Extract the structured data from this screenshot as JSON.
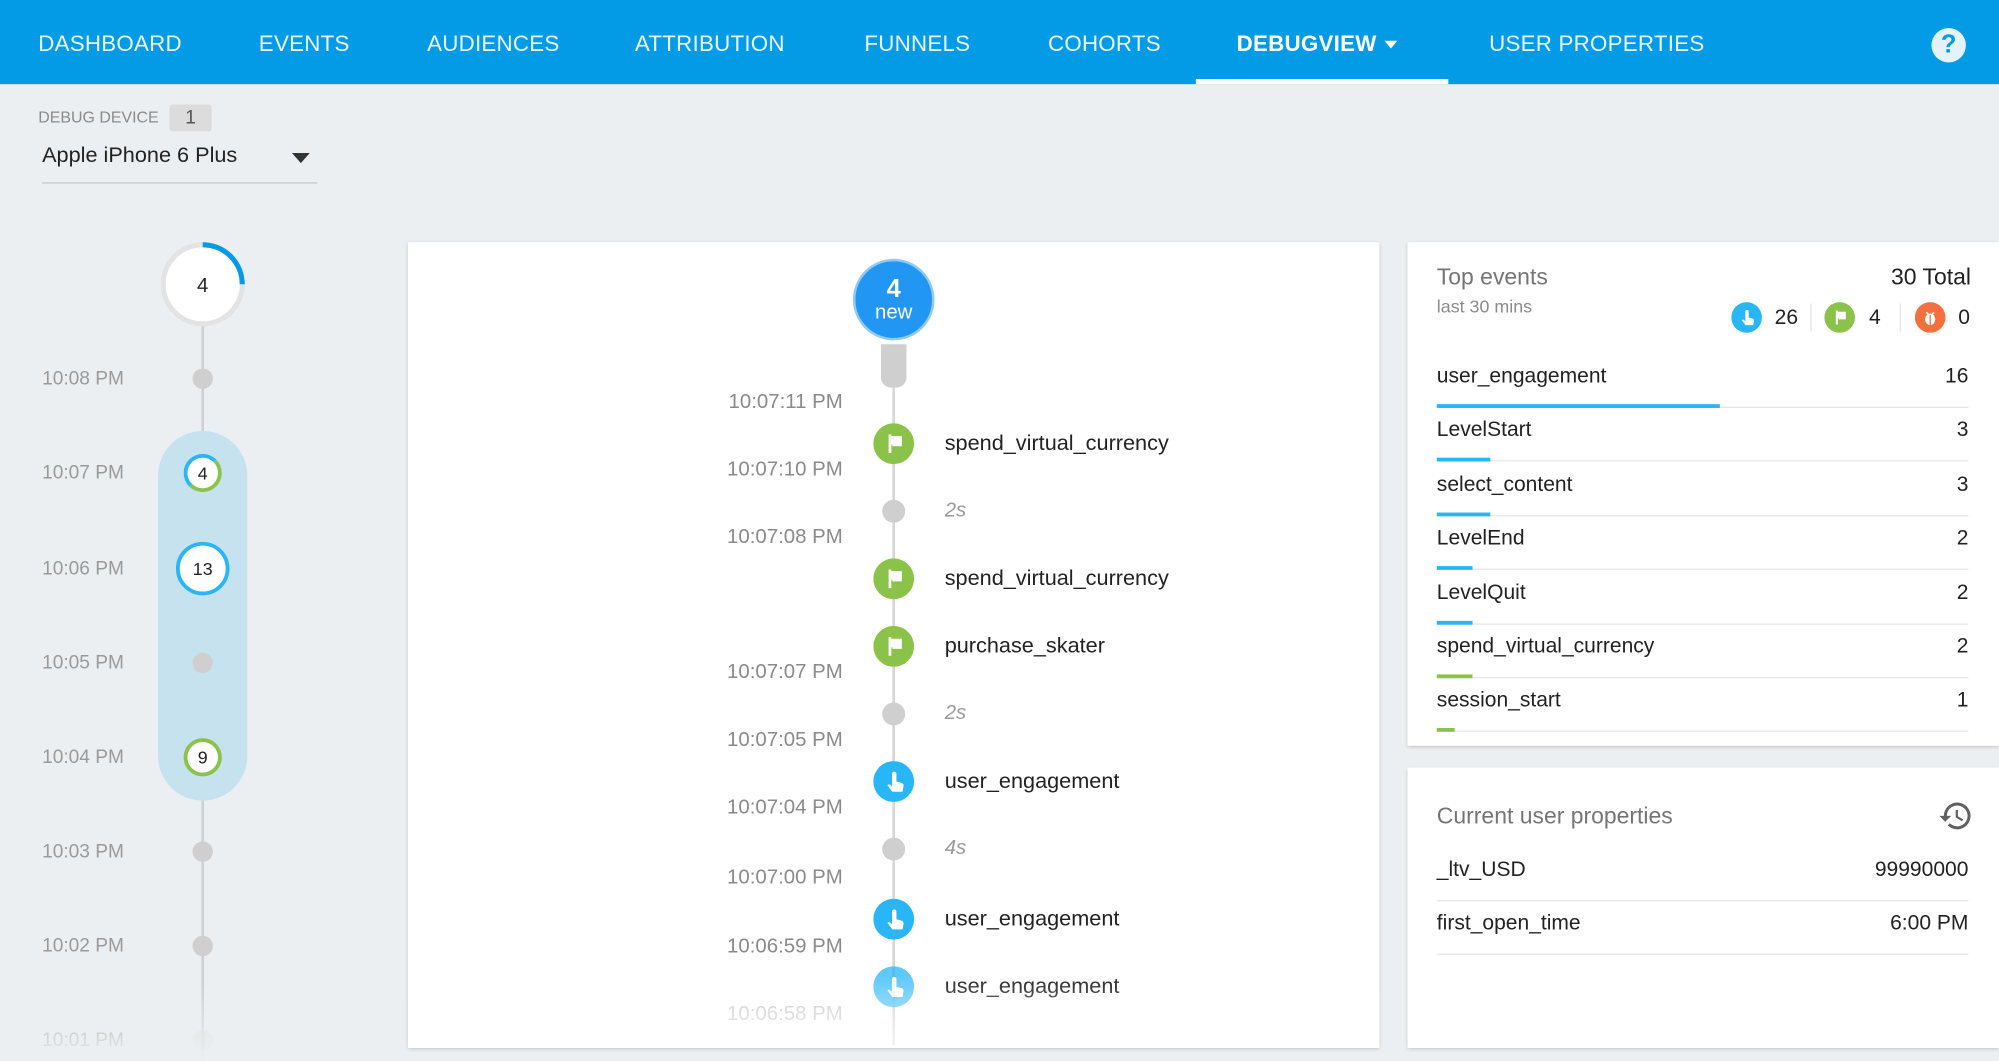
{
  "nav": {
    "tabs": [
      "DASHBOARD",
      "EVENTS",
      "AUDIENCES",
      "ATTRIBUTION",
      "FUNNELS",
      "COHORTS",
      "DEBUGVIEW",
      "USER PROPERTIES"
    ],
    "active": "DEBUGVIEW",
    "help_icon": "help-icon"
  },
  "colors": {
    "nav": "#039be5",
    "engagement": "#29b6f6",
    "conversion": "#8bc34a",
    "error": "#f4703c",
    "highlight": "#c7e2ef"
  },
  "device": {
    "label": "DEBUG DEVICE",
    "count": "1",
    "selected": "Apple iPhone 6 Plus"
  },
  "minutes": {
    "top_count": "4",
    "times": [
      "10:08 PM",
      "10:07 PM",
      "10:06 PM",
      "10:05 PM",
      "10:04 PM",
      "10:03 PM",
      "10:02 PM",
      "10:01 PM"
    ],
    "counts": {
      "10:07 PM": "4",
      "10:06 PM": "13",
      "10:04 PM": "9"
    }
  },
  "stream": {
    "new_count": "4",
    "new_label": "new",
    "times": [
      "10:07:11 PM",
      "10:07:10 PM",
      "10:07:08 PM",
      "10:07:07 PM",
      "10:07:05 PM",
      "10:07:04 PM",
      "10:07:00 PM",
      "10:06:59 PM",
      "10:06:58 PM"
    ],
    "events": [
      {
        "type": "conversion",
        "name": "spend_virtual_currency"
      },
      {
        "type": "gap",
        "name": "2s"
      },
      {
        "type": "conversion",
        "name": "spend_virtual_currency"
      },
      {
        "type": "conversion",
        "name": "purchase_skater"
      },
      {
        "type": "gap",
        "name": "2s"
      },
      {
        "type": "engagement",
        "name": "user_engagement"
      },
      {
        "type": "gap",
        "name": "4s"
      },
      {
        "type": "engagement",
        "name": "user_engagement"
      },
      {
        "type": "engagement",
        "name": "user_engagement"
      }
    ]
  },
  "top_events": {
    "title": "Top events",
    "subtitle": "last 30 mins",
    "total": "30 Total",
    "summary": {
      "engagement": "26",
      "conversion": "4",
      "error": "0"
    },
    "rows": [
      {
        "name": "user_engagement",
        "count": 16,
        "type": "engagement"
      },
      {
        "name": "LevelStart",
        "count": 3,
        "type": "engagement"
      },
      {
        "name": "select_content",
        "count": 3,
        "type": "engagement"
      },
      {
        "name": "LevelEnd",
        "count": 2,
        "type": "engagement"
      },
      {
        "name": "LevelQuit",
        "count": 2,
        "type": "engagement"
      },
      {
        "name": "spend_virtual_currency",
        "count": 2,
        "type": "conversion"
      },
      {
        "name": "session_start",
        "count": 1,
        "type": "conversion"
      }
    ]
  },
  "user_properties": {
    "title": "Current user properties",
    "rows": [
      {
        "name": "_ltv_USD",
        "value": "99990000"
      },
      {
        "name": "first_open_time",
        "value": "6:00 PM"
      }
    ]
  }
}
